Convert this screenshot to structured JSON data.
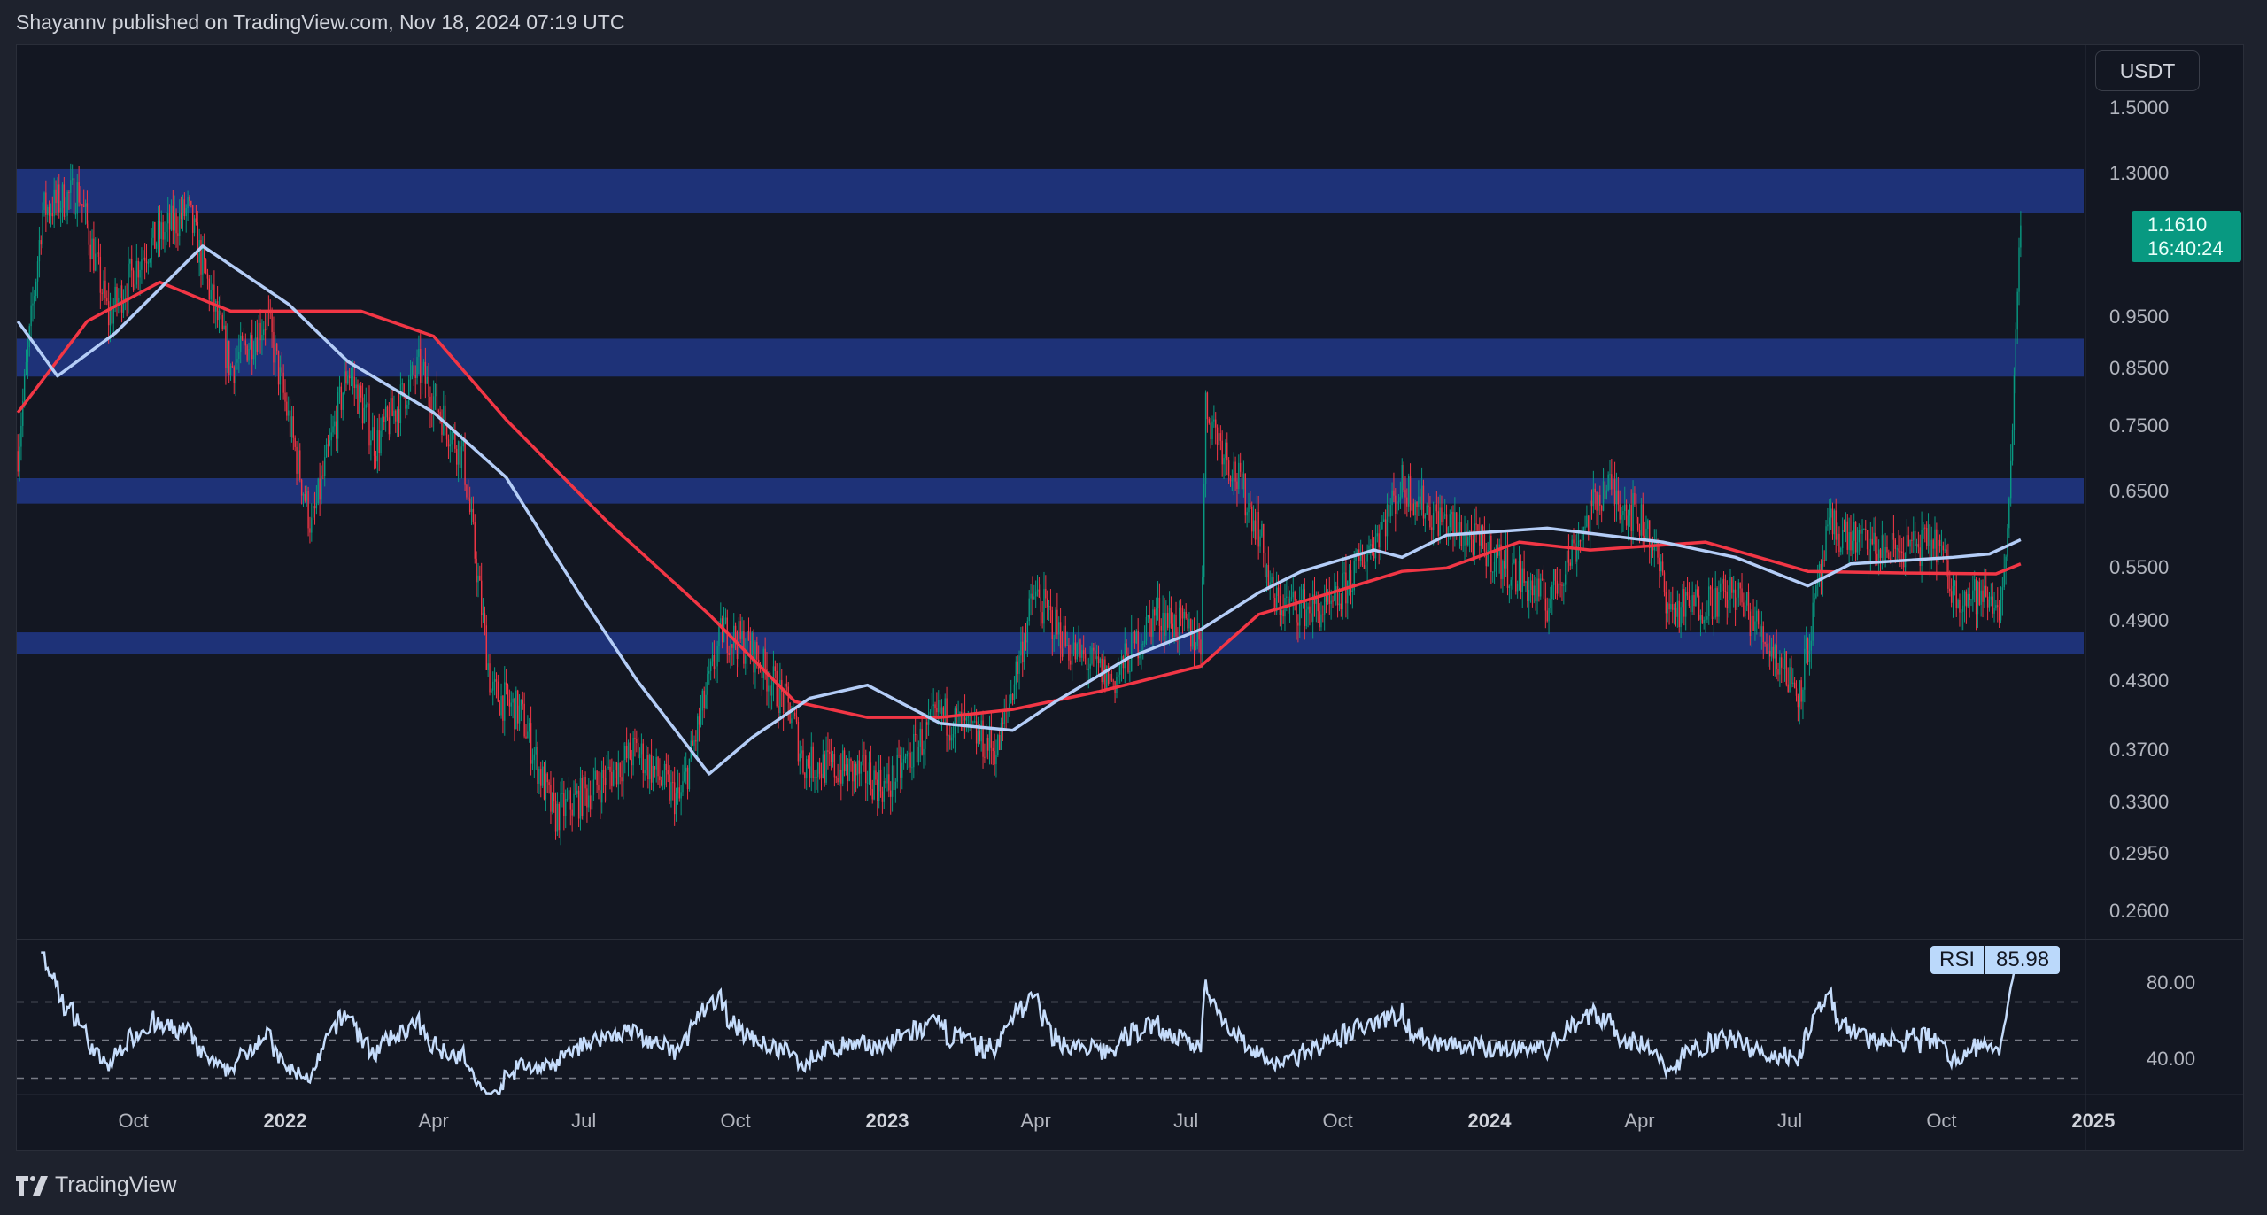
{
  "header": {
    "text": "Shayannv published on TradingView.com, Nov 18, 2024 07:19 UTC"
  },
  "currency": "USDT",
  "last_price": {
    "value": "1.1610",
    "countdown": "16:40:24"
  },
  "rsi": {
    "label": "RSI",
    "value": "85.98",
    "axis": [
      "80.00",
      "40.00"
    ]
  },
  "footer": {
    "brand": "TradingView",
    "logo_icon": "tradingview-logo-icon"
  },
  "chart_data": {
    "type": "candlestick",
    "scale": "log",
    "ylim": [
      0.26,
      1.5
    ],
    "y_ticks": [
      "1.5000",
      "1.3000",
      "0.9500",
      "0.8500",
      "0.7500",
      "0.6500",
      "0.5500",
      "0.4900",
      "0.4300",
      "0.3700",
      "0.3300",
      "0.2950",
      "0.2600"
    ],
    "x_ticks": [
      {
        "label": "Oct",
        "date": "2021-10-01"
      },
      {
        "label": "2022",
        "date": "2022-01-01",
        "year": true
      },
      {
        "label": "Apr",
        "date": "2022-04-01"
      },
      {
        "label": "Jul",
        "date": "2022-07-01"
      },
      {
        "label": "Oct",
        "date": "2022-10-01"
      },
      {
        "label": "2023",
        "date": "2023-01-01",
        "year": true
      },
      {
        "label": "Apr",
        "date": "2023-04-01"
      },
      {
        "label": "Jul",
        "date": "2023-07-01"
      },
      {
        "label": "Oct",
        "date": "2023-10-01"
      },
      {
        "label": "2024",
        "date": "2024-01-01",
        "year": true
      },
      {
        "label": "Apr",
        "date": "2024-04-01"
      },
      {
        "label": "Jul",
        "date": "2024-07-01"
      },
      {
        "label": "Oct",
        "date": "2024-10-01"
      },
      {
        "label": "2025",
        "date": "2025-01-01",
        "year": true
      }
    ],
    "colors": {
      "up": "#089981",
      "down": "#f23645",
      "zone": "#1e3278",
      "ma_fast": "#b4cdf7",
      "ma_slow": "#f23645",
      "rsi": "#c5dcfb"
    },
    "zones": [
      [
        1.194,
        1.313
      ],
      [
        0.835,
        0.907
      ],
      [
        0.633,
        0.669
      ],
      [
        0.456,
        0.478
      ]
    ],
    "price_path": [
      [
        "2021-07-23",
        0.71
      ],
      [
        "2021-08-07",
        1.2
      ],
      [
        "2021-08-29",
        1.25
      ],
      [
        "2021-09-16",
        0.95
      ],
      [
        "2021-10-08",
        1.1
      ],
      [
        "2021-11-03",
        1.2
      ],
      [
        "2021-11-29",
        0.85
      ],
      [
        "2021-12-21",
        0.95
      ],
      [
        "2022-01-17",
        0.6
      ],
      [
        "2022-02-08",
        0.85
      ],
      [
        "2022-02-25",
        0.72
      ],
      [
        "2022-03-23",
        0.85
      ],
      [
        "2022-04-19",
        0.7
      ],
      [
        "2022-05-06",
        0.42
      ],
      [
        "2022-05-24",
        0.4
      ],
      [
        "2022-06-13",
        0.32
      ],
      [
        "2022-07-07",
        0.34
      ],
      [
        "2022-08-02",
        0.37
      ],
      [
        "2022-08-28",
        0.33
      ],
      [
        "2022-09-23",
        0.48
      ],
      [
        "2022-10-11",
        0.46
      ],
      [
        "2022-11-04",
        0.4
      ],
      [
        "2022-11-11",
        0.36
      ],
      [
        "2022-12-20",
        0.35
      ],
      [
        "2023-01-01",
        0.34
      ],
      [
        "2023-02-02",
        0.4
      ],
      [
        "2023-03-09",
        0.37
      ],
      [
        "2023-03-31",
        0.52
      ],
      [
        "2023-04-22",
        0.46
      ],
      [
        "2023-05-18",
        0.43
      ],
      [
        "2023-06-13",
        0.5
      ],
      [
        "2023-07-10",
        0.47
      ],
      [
        "2023-07-13",
        0.78
      ],
      [
        "2023-07-23",
        0.72
      ],
      [
        "2023-08-14",
        0.6
      ],
      [
        "2023-08-23",
        0.51
      ],
      [
        "2023-09-27",
        0.5
      ],
      [
        "2023-10-27",
        0.6
      ],
      [
        "2023-11-09",
        0.66
      ],
      [
        "2023-11-27",
        0.62
      ],
      [
        "2024-01-01",
        0.57
      ],
      [
        "2024-02-05",
        0.51
      ],
      [
        "2024-03-11",
        0.66
      ],
      [
        "2024-04-06",
        0.6
      ],
      [
        "2024-04-20",
        0.5
      ],
      [
        "2024-05-29",
        0.52
      ],
      [
        "2024-07-07",
        0.42
      ],
      [
        "2024-07-25",
        0.6
      ],
      [
        "2024-08-25",
        0.57
      ],
      [
        "2024-09-29",
        0.58
      ],
      [
        "2024-10-08",
        0.52
      ],
      [
        "2024-11-07",
        0.51
      ],
      [
        "2024-11-13",
        0.75
      ],
      [
        "2024-11-18",
        1.161
      ]
    ],
    "ma_fast": [
      [
        "2021-07-23",
        0.942
      ],
      [
        "2021-08-16",
        0.836
      ],
      [
        "2021-09-20",
        0.918
      ],
      [
        "2021-11-12",
        1.11
      ],
      [
        "2022-01-03",
        0.978
      ],
      [
        "2022-02-08",
        0.863
      ],
      [
        "2022-04-01",
        0.772
      ],
      [
        "2022-05-15",
        0.67
      ],
      [
        "2022-06-28",
        0.521
      ],
      [
        "2022-08-02",
        0.431
      ],
      [
        "2022-09-15",
        0.351
      ],
      [
        "2022-10-11",
        0.38
      ],
      [
        "2022-11-15",
        0.414
      ],
      [
        "2022-12-20",
        0.426
      ],
      [
        "2023-02-02",
        0.392
      ],
      [
        "2023-03-18",
        0.386
      ],
      [
        "2023-04-13",
        0.411
      ],
      [
        "2023-05-27",
        0.452
      ],
      [
        "2023-07-10",
        0.481
      ],
      [
        "2023-08-14",
        0.521
      ],
      [
        "2023-09-09",
        0.546
      ],
      [
        "2023-10-23",
        0.572
      ],
      [
        "2023-11-09",
        0.563
      ],
      [
        "2023-12-06",
        0.591
      ],
      [
        "2024-02-05",
        0.6
      ],
      [
        "2024-04-15",
        0.582
      ],
      [
        "2024-05-29",
        0.563
      ],
      [
        "2024-07-12",
        0.529
      ],
      [
        "2024-08-07",
        0.555
      ],
      [
        "2024-10-08",
        0.563
      ],
      [
        "2024-10-30",
        0.567
      ],
      [
        "2024-11-18",
        0.585
      ]
    ],
    "ma_slow": [
      [
        "2021-07-23",
        0.772
      ],
      [
        "2021-09-03",
        0.942
      ],
      [
        "2021-10-17",
        1.026
      ],
      [
        "2021-11-29",
        0.963
      ],
      [
        "2022-02-16",
        0.963
      ],
      [
        "2022-04-01",
        0.912
      ],
      [
        "2022-05-15",
        0.76
      ],
      [
        "2022-07-15",
        0.609
      ],
      [
        "2022-09-15",
        0.497
      ],
      [
        "2022-11-06",
        0.411
      ],
      [
        "2022-12-20",
        0.397
      ],
      [
        "2023-02-02",
        0.397
      ],
      [
        "2023-03-18",
        0.404
      ],
      [
        "2023-05-09",
        0.42
      ],
      [
        "2023-07-10",
        0.444
      ],
      [
        "2023-08-14",
        0.497
      ],
      [
        "2023-09-27",
        0.521
      ],
      [
        "2023-11-09",
        0.546
      ],
      [
        "2023-12-06",
        0.55
      ],
      [
        "2024-01-19",
        0.582
      ],
      [
        "2024-03-02",
        0.572
      ],
      [
        "2024-05-11",
        0.582
      ],
      [
        "2024-07-12",
        0.546
      ],
      [
        "2024-09-11",
        0.544
      ],
      [
        "2024-11-03",
        0.543
      ],
      [
        "2024-11-18",
        0.555
      ]
    ]
  }
}
